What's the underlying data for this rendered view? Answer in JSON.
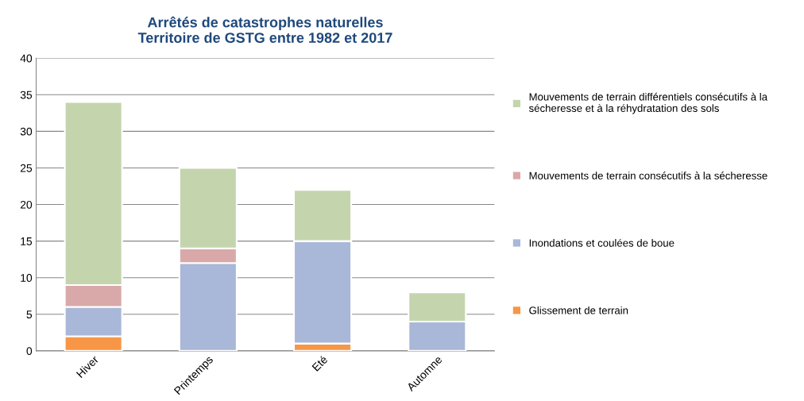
{
  "chart_data": {
    "type": "bar",
    "stacked": true,
    "title": "Arrêtés de catastrophes naturelles\nTerritoire de GSTG entre 1982 et 2017",
    "categories": [
      "Hiver",
      "Printemps",
      "Eté",
      "Automne"
    ],
    "series": [
      {
        "name": "Glissement de terrain",
        "color": "#f79646",
        "values": [
          2,
          0,
          1,
          0
        ]
      },
      {
        "name": "Inondations et coulées de boue",
        "color": "#a9b8d8",
        "values": [
          4,
          12,
          14,
          4
        ]
      },
      {
        "name": "Mouvements de terrain consécutifs à la sécheresse",
        "color": "#d9a9a9",
        "values": [
          3,
          2,
          0,
          0
        ]
      },
      {
        "name": "Mouvements de terrain différentiels consécutifs à la sécheresse et à la réhydratation des sols",
        "color": "#c4d5ad",
        "values": [
          25,
          11,
          7,
          4
        ]
      }
    ],
    "ylim": [
      0,
      40
    ],
    "yticks": [
      0,
      5,
      10,
      15,
      20,
      25,
      30,
      35,
      40
    ],
    "grid": "y",
    "legend": "right"
  }
}
